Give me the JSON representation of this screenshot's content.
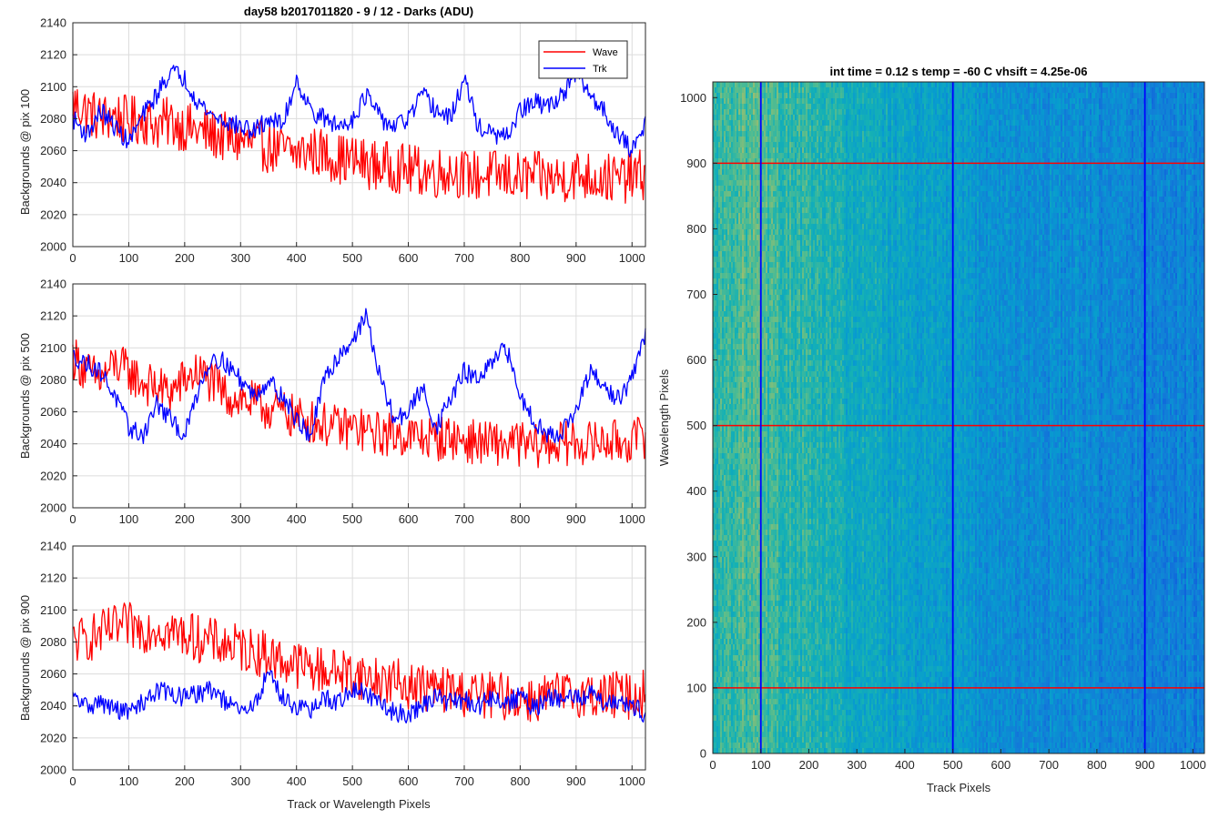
{
  "chart_data": [
    {
      "type": "line",
      "title": "day58 b2017011820 - 9 / 12 - Darks (ADU)",
      "xlabel": "",
      "ylabel": "Backgrounds @ pix 100",
      "xlim": [
        0,
        1024
      ],
      "ylim": [
        2000,
        2140
      ],
      "xticks": [
        0,
        100,
        200,
        300,
        400,
        500,
        600,
        700,
        800,
        900,
        1000
      ],
      "yticks": [
        2000,
        2020,
        2040,
        2060,
        2080,
        2100,
        2120,
        2140
      ],
      "grid": true,
      "legend": "top-right",
      "x": [
        0,
        25,
        50,
        75,
        100,
        125,
        150,
        175,
        200,
        225,
        250,
        275,
        300,
        325,
        350,
        375,
        400,
        425,
        450,
        475,
        500,
        525,
        550,
        575,
        600,
        625,
        650,
        675,
        700,
        725,
        750,
        775,
        800,
        825,
        850,
        875,
        900,
        925,
        950,
        975,
        1000,
        1024
      ],
      "series": [
        {
          "name": "Wave",
          "color": "#ff0000",
          "noise": 16,
          "values": [
            2090,
            2085,
            2080,
            2082,
            2078,
            2080,
            2076,
            2078,
            2075,
            2072,
            2070,
            2068,
            2066,
            2064,
            2062,
            2060,
            2058,
            2060,
            2058,
            2055,
            2054,
            2052,
            2050,
            2050,
            2048,
            2047,
            2046,
            2048,
            2045,
            2044,
            2045,
            2044,
            2043,
            2044,
            2042,
            2043,
            2045,
            2044,
            2043,
            2042,
            2044,
            2045
          ]
        },
        {
          "name": "Trk",
          "color": "#0000ff",
          "noise": 6,
          "values": [
            2080,
            2070,
            2085,
            2075,
            2065,
            2082,
            2095,
            2110,
            2105,
            2090,
            2082,
            2078,
            2075,
            2072,
            2080,
            2076,
            2105,
            2085,
            2080,
            2075,
            2080,
            2095,
            2080,
            2075,
            2080,
            2095,
            2085,
            2080,
            2105,
            2075,
            2070,
            2068,
            2085,
            2090,
            2088,
            2095,
            2108,
            2095,
            2085,
            2070,
            2060,
            2078
          ]
        }
      ]
    },
    {
      "type": "line",
      "title": "",
      "xlabel": "",
      "ylabel": "Backgrounds @ pix 500",
      "xlim": [
        0,
        1024
      ],
      "ylim": [
        2000,
        2140
      ],
      "xticks": [
        0,
        100,
        200,
        300,
        400,
        500,
        600,
        700,
        800,
        900,
        1000
      ],
      "yticks": [
        2000,
        2020,
        2040,
        2060,
        2080,
        2100,
        2120,
        2140
      ],
      "grid": true,
      "x": [
        0,
        25,
        50,
        75,
        100,
        125,
        150,
        175,
        200,
        225,
        250,
        275,
        300,
        325,
        350,
        375,
        400,
        425,
        450,
        475,
        500,
        525,
        550,
        575,
        600,
        625,
        650,
        675,
        700,
        725,
        750,
        775,
        800,
        825,
        850,
        875,
        900,
        925,
        950,
        975,
        1000,
        1024
      ],
      "series": [
        {
          "name": "Wave",
          "color": "#ff0000",
          "noise": 14,
          "values": [
            2095,
            2085,
            2080,
            2090,
            2085,
            2078,
            2075,
            2072,
            2080,
            2085,
            2078,
            2070,
            2068,
            2065,
            2062,
            2060,
            2056,
            2054,
            2052,
            2050,
            2050,
            2048,
            2046,
            2046,
            2045,
            2044,
            2043,
            2044,
            2042,
            2041,
            2040,
            2040,
            2040,
            2038,
            2040,
            2040,
            2041,
            2040,
            2042,
            2041,
            2042,
            2045
          ]
        },
        {
          "name": "Trk",
          "color": "#0000ff",
          "noise": 6,
          "values": [
            2095,
            2090,
            2085,
            2070,
            2050,
            2045,
            2065,
            2055,
            2045,
            2075,
            2095,
            2090,
            2080,
            2070,
            2080,
            2070,
            2055,
            2045,
            2080,
            2095,
            2105,
            2120,
            2080,
            2055,
            2060,
            2075,
            2050,
            2068,
            2085,
            2080,
            2090,
            2100,
            2070,
            2055,
            2045,
            2048,
            2060,
            2085,
            2075,
            2068,
            2080,
            2110
          ]
        }
      ]
    },
    {
      "type": "line",
      "title": "",
      "xlabel": "Track or Wavelength Pixels",
      "ylabel": "Backgrounds @ pix 900",
      "xlim": [
        0,
        1024
      ],
      "ylim": [
        2000,
        2140
      ],
      "xticks": [
        0,
        100,
        200,
        300,
        400,
        500,
        600,
        700,
        800,
        900,
        1000
      ],
      "yticks": [
        2000,
        2020,
        2040,
        2060,
        2080,
        2100,
        2120,
        2140
      ],
      "grid": true,
      "x": [
        0,
        25,
        50,
        75,
        100,
        125,
        150,
        175,
        200,
        225,
        250,
        275,
        300,
        325,
        350,
        375,
        400,
        425,
        450,
        475,
        500,
        525,
        550,
        575,
        600,
        625,
        650,
        675,
        700,
        725,
        750,
        775,
        800,
        825,
        850,
        875,
        900,
        925,
        950,
        975,
        1000,
        1024
      ],
      "series": [
        {
          "name": "Wave",
          "color": "#ff0000",
          "noise": 15,
          "values": [
            2080,
            2082,
            2085,
            2088,
            2090,
            2088,
            2090,
            2086,
            2085,
            2082,
            2080,
            2078,
            2076,
            2074,
            2072,
            2068,
            2066,
            2064,
            2062,
            2062,
            2060,
            2058,
            2056,
            2055,
            2053,
            2052,
            2050,
            2050,
            2048,
            2047,
            2046,
            2046,
            2045,
            2044,
            2046,
            2046,
            2048,
            2047,
            2046,
            2047,
            2046,
            2048
          ]
        },
        {
          "name": "Trk",
          "color": "#0000ff",
          "noise": 6,
          "values": [
            2045,
            2040,
            2042,
            2038,
            2036,
            2042,
            2050,
            2048,
            2045,
            2048,
            2050,
            2042,
            2036,
            2040,
            2062,
            2045,
            2040,
            2036,
            2045,
            2042,
            2050,
            2048,
            2040,
            2036,
            2035,
            2040,
            2046,
            2042,
            2044,
            2040,
            2045,
            2042,
            2046,
            2038,
            2045,
            2044,
            2045,
            2048,
            2042,
            2044,
            2040,
            2035
          ]
        }
      ]
    },
    {
      "type": "heatmap",
      "title": "int time = 0.12 s    temp = -60 C    vhsift = 4.25e-06",
      "xlabel": "Track Pixels",
      "ylabel": "Wavelength Pixels",
      "xlim": [
        0,
        1024
      ],
      "ylim": [
        0,
        1024
      ],
      "xticks": [
        0,
        100,
        200,
        300,
        400,
        500,
        600,
        700,
        800,
        900,
        1000
      ],
      "yticks": [
        0,
        100,
        200,
        300,
        400,
        500,
        600,
        700,
        800,
        900,
        1000
      ],
      "colormap": "parula",
      "horizontal_markers": {
        "color": "#ff0000",
        "values": [
          100,
          500,
          900
        ]
      },
      "vertical_markers": {
        "color": "#0000ff",
        "values": [
          100,
          500,
          900
        ]
      },
      "column_profile": {
        "x": [
          0,
          50,
          100,
          150,
          200,
          250,
          300,
          350,
          400,
          450,
          500,
          550,
          600,
          650,
          700,
          750,
          800,
          850,
          900,
          950,
          1024
        ],
        "values": [
          0.6,
          0.68,
          0.66,
          0.62,
          0.6,
          0.56,
          0.52,
          0.5,
          0.47,
          0.45,
          0.43,
          0.4,
          0.38,
          0.36,
          0.36,
          0.35,
          0.33,
          0.32,
          0.31,
          0.31,
          0.3
        ]
      }
    }
  ]
}
